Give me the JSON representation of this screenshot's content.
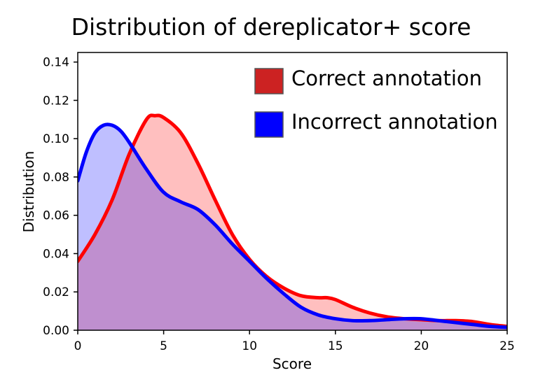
{
  "chart_data": {
    "type": "area",
    "title": "Distribution of dereplicator+ score",
    "xlabel": "Score",
    "ylabel": "Distribution",
    "xlim": [
      0,
      25
    ],
    "ylim": [
      0,
      0.145
    ],
    "x_ticks": [
      0,
      5,
      10,
      15,
      20,
      25
    ],
    "y_ticks": [
      0.0,
      0.02,
      0.04,
      0.06,
      0.08,
      0.1,
      0.12,
      0.14
    ],
    "y_tick_labels": [
      "0.00",
      "0.02",
      "0.04",
      "0.06",
      "0.08",
      "0.10",
      "0.12",
      "0.14"
    ],
    "grid": false,
    "legend_position": "top-right",
    "series": [
      {
        "name": "Correct annotation",
        "color": "#ff0000",
        "fill_color": "#ff0000",
        "fill_opacity": 0.25,
        "legend_swatch_color": "#cc2222",
        "points": [
          [
            0,
            0.036
          ],
          [
            1,
            0.05
          ],
          [
            2,
            0.068
          ],
          [
            3,
            0.092
          ],
          [
            4,
            0.11
          ],
          [
            4.5,
            0.112
          ],
          [
            5,
            0.111
          ],
          [
            6,
            0.103
          ],
          [
            7,
            0.087
          ],
          [
            8,
            0.068
          ],
          [
            9,
            0.05
          ],
          [
            10,
            0.037
          ],
          [
            11,
            0.028
          ],
          [
            12,
            0.022
          ],
          [
            13,
            0.018
          ],
          [
            14,
            0.017
          ],
          [
            14.5,
            0.017
          ],
          [
            15,
            0.016
          ],
          [
            16,
            0.012
          ],
          [
            17,
            0.009
          ],
          [
            18,
            0.007
          ],
          [
            19,
            0.006
          ],
          [
            20,
            0.0055
          ],
          [
            21,
            0.005
          ],
          [
            22,
            0.005
          ],
          [
            23,
            0.0045
          ],
          [
            24,
            0.003
          ],
          [
            25,
            0.002
          ]
        ]
      },
      {
        "name": "Incorrect annotation",
        "color": "#0000ff",
        "fill_color": "#0000ff",
        "fill_opacity": 0.25,
        "legend_swatch_color": "#0000ff",
        "points": [
          [
            0,
            0.078
          ],
          [
            0.5,
            0.093
          ],
          [
            1,
            0.103
          ],
          [
            1.5,
            0.107
          ],
          [
            2,
            0.107
          ],
          [
            2.5,
            0.104
          ],
          [
            3,
            0.098
          ],
          [
            4,
            0.084
          ],
          [
            5,
            0.072
          ],
          [
            6,
            0.067
          ],
          [
            7,
            0.063
          ],
          [
            8,
            0.055
          ],
          [
            9,
            0.045
          ],
          [
            10,
            0.036
          ],
          [
            11,
            0.027
          ],
          [
            12,
            0.019
          ],
          [
            13,
            0.012
          ],
          [
            14,
            0.008
          ],
          [
            15,
            0.006
          ],
          [
            16,
            0.005
          ],
          [
            17,
            0.005
          ],
          [
            18,
            0.0055
          ],
          [
            19,
            0.006
          ],
          [
            20,
            0.006
          ],
          [
            21,
            0.005
          ],
          [
            22,
            0.004
          ],
          [
            23,
            0.003
          ],
          [
            24,
            0.002
          ],
          [
            25,
            0.0015
          ]
        ]
      }
    ]
  }
}
